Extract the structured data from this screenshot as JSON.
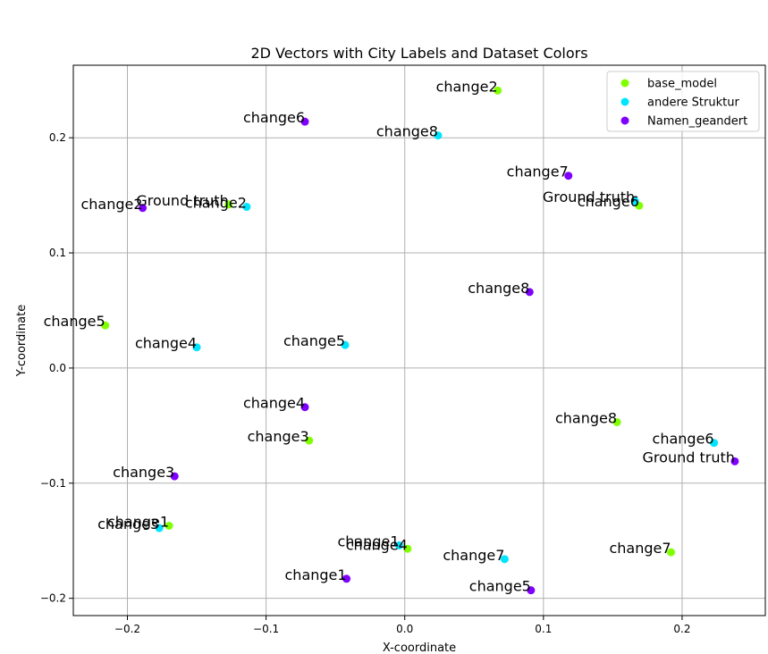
{
  "chart_data": {
    "type": "scatter",
    "title": "2D Vectors with City Labels and Dataset Colors",
    "xlabel": "X-coordinate",
    "ylabel": "Y-coordinate",
    "xlim": [
      -0.239,
      0.26
    ],
    "ylim": [
      -0.215,
      0.263
    ],
    "xticks": [
      -0.2,
      -0.1,
      0.0,
      0.1,
      0.2
    ],
    "xtick_labels": [
      "−0.2",
      "−0.1",
      "0.0",
      "0.1",
      "0.2"
    ],
    "yticks": [
      -0.2,
      -0.1,
      0.0,
      0.1,
      0.2
    ],
    "ytick_labels": [
      "−0.2",
      "−0.1",
      "0.0",
      "0.1",
      "0.2"
    ],
    "grid": true,
    "legend_position": "top-right",
    "series": [
      {
        "name": "base_model",
        "color": "#80ff00",
        "points": [
          {
            "x": 0.067,
            "y": 0.241,
            "label": "change2"
          },
          {
            "x": 0.169,
            "y": 0.141,
            "label": "change6"
          },
          {
            "x": -0.127,
            "y": 0.142,
            "label": "Ground truth"
          },
          {
            "x": -0.216,
            "y": 0.037,
            "label": "change5"
          },
          {
            "x": -0.069,
            "y": -0.063,
            "label": "change3"
          },
          {
            "x": 0.153,
            "y": -0.047,
            "label": "change8"
          },
          {
            "x": -0.17,
            "y": -0.137,
            "label": "change1"
          },
          {
            "x": 0.002,
            "y": -0.157,
            "label": "change4"
          },
          {
            "x": 0.192,
            "y": -0.16,
            "label": "change7"
          }
        ]
      },
      {
        "name": "andere Struktur",
        "color": "#00e5ff",
        "points": [
          {
            "x": 0.024,
            "y": 0.202,
            "label": "change8"
          },
          {
            "x": -0.114,
            "y": 0.14,
            "label": "change2"
          },
          {
            "x": 0.166,
            "y": 0.145,
            "label": "Ground truth"
          },
          {
            "x": -0.15,
            "y": 0.018,
            "label": "change4"
          },
          {
            "x": -0.043,
            "y": 0.02,
            "label": "change5"
          },
          {
            "x": 0.223,
            "y": -0.065,
            "label": "change6"
          },
          {
            "x": -0.177,
            "y": -0.139,
            "label": "change3"
          },
          {
            "x": -0.004,
            "y": -0.154,
            "label": "change1"
          },
          {
            "x": 0.072,
            "y": -0.166,
            "label": "change7"
          }
        ]
      },
      {
        "name": "Namen_geandert",
        "color": "#7f00ff",
        "points": [
          {
            "x": -0.072,
            "y": 0.214,
            "label": "change6"
          },
          {
            "x": 0.118,
            "y": 0.167,
            "label": "change7"
          },
          {
            "x": -0.189,
            "y": 0.139,
            "label": "change2"
          },
          {
            "x": 0.09,
            "y": 0.066,
            "label": "change8"
          },
          {
            "x": -0.072,
            "y": -0.034,
            "label": "change4"
          },
          {
            "x": -0.166,
            "y": -0.094,
            "label": "change3"
          },
          {
            "x": 0.238,
            "y": -0.081,
            "label": "Ground truth"
          },
          {
            "x": -0.042,
            "y": -0.183,
            "label": "change1"
          },
          {
            "x": 0.091,
            "y": -0.193,
            "label": "change5"
          }
        ]
      }
    ]
  }
}
